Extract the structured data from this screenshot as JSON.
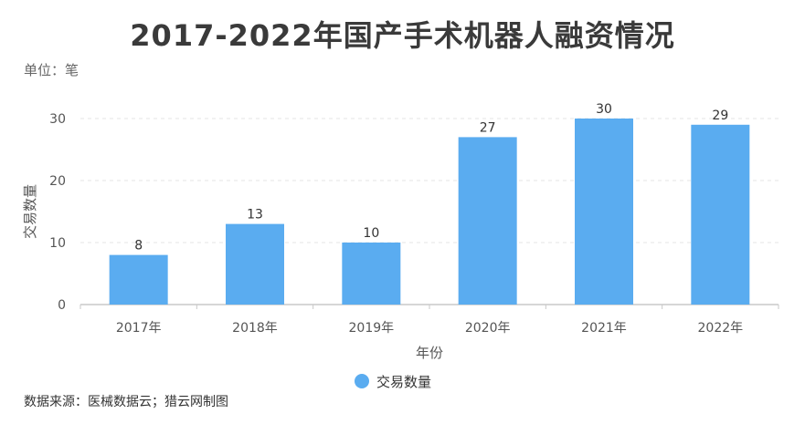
{
  "title": "2017-2022年国产手术机器人融资情况",
  "unit_label": "单位：笔",
  "source_label": "数据来源：医械数据云；猎云网制图",
  "colors": {
    "bar": "#5aacf0",
    "grid": "#e6e6e6",
    "axis": "#c8c8c8"
  },
  "chart_data": {
    "type": "bar",
    "categories": [
      "2017年",
      "2018年",
      "2019年",
      "2020年",
      "2021年",
      "2022年"
    ],
    "series": [
      {
        "name": "交易数量",
        "values": [
          8,
          13,
          10,
          27,
          30,
          29
        ]
      }
    ],
    "xlabel": "年份",
    "ylabel": "交易数量",
    "ylim": [
      0,
      30
    ],
    "yticks": [
      0,
      10,
      20,
      30
    ],
    "grid": true,
    "legend_position": "bottom"
  }
}
